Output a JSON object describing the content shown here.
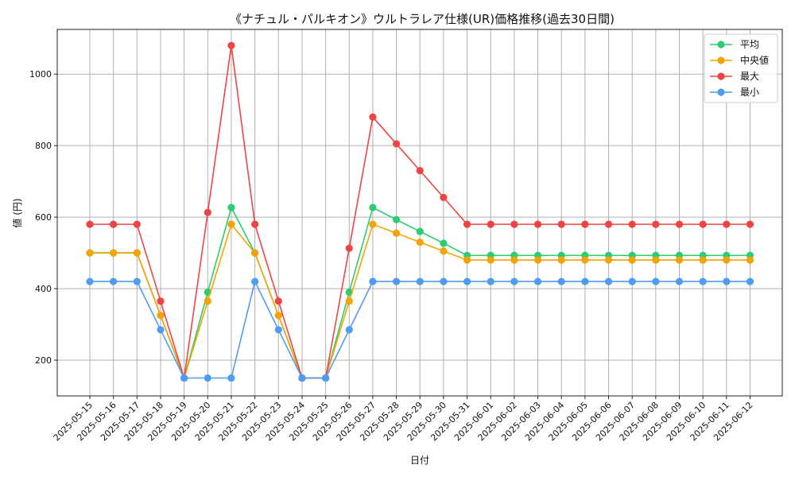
{
  "chart_data": {
    "type": "line",
    "title": "《ナチュル・パルキオン》ウルトラレア仕様(UR)価格推移(過去30日間)",
    "xlabel": "日付",
    "ylabel": "値 (円)",
    "ylim": [
      100,
      1125
    ],
    "yticks": [
      200,
      400,
      600,
      800,
      1000
    ],
    "grid": true,
    "legend_position": "top-right",
    "categories": [
      "2025-05-15",
      "2025-05-16",
      "2025-05-17",
      "2025-05-18",
      "2025-05-19",
      "2025-05-20",
      "2025-05-21",
      "2025-05-22",
      "2025-05-23",
      "2025-05-24",
      "2025-05-25",
      "2025-05-26",
      "2025-05-27",
      "2025-05-28",
      "2025-05-29",
      "2025-05-30",
      "2025-05-31",
      "2025-06-01",
      "2025-06-02",
      "2025-06-03",
      "2025-06-04",
      "2025-06-05",
      "2025-06-06",
      "2025-06-07",
      "2025-06-08",
      "2025-06-09",
      "2025-06-10",
      "2025-06-11",
      "2025-06-12"
    ],
    "series": [
      {
        "name": "平均",
        "color": "#2ecc71",
        "values": [
          500,
          500,
          500,
          325,
          150,
          390,
          627,
          500,
          325,
          150,
          150,
          390,
          627,
          593,
          560,
          527,
          493,
          493,
          493,
          493,
          493,
          493,
          493,
          493,
          493,
          493,
          493,
          493,
          493
        ]
      },
      {
        "name": "中央値",
        "color": "#f5a300",
        "values": [
          500,
          500,
          500,
          325,
          150,
          365,
          580,
          500,
          325,
          150,
          150,
          365,
          580,
          555,
          530,
          505,
          480,
          480,
          480,
          480,
          480,
          480,
          480,
          480,
          480,
          480,
          480,
          480,
          480
        ]
      },
      {
        "name": "最大",
        "color": "#ef4444",
        "values": [
          580,
          580,
          580,
          365,
          150,
          613,
          1080,
          580,
          365,
          150,
          150,
          513,
          880,
          805,
          730,
          655,
          580,
          580,
          580,
          580,
          580,
          580,
          580,
          580,
          580,
          580,
          580,
          580,
          580
        ]
      },
      {
        "name": "最小",
        "color": "#4f9cf5",
        "values": [
          420,
          420,
          420,
          285,
          150,
          150,
          150,
          420,
          285,
          150,
          150,
          285,
          420,
          420,
          420,
          420,
          420,
          420,
          420,
          420,
          420,
          420,
          420,
          420,
          420,
          420,
          420,
          420,
          420
        ]
      }
    ]
  }
}
